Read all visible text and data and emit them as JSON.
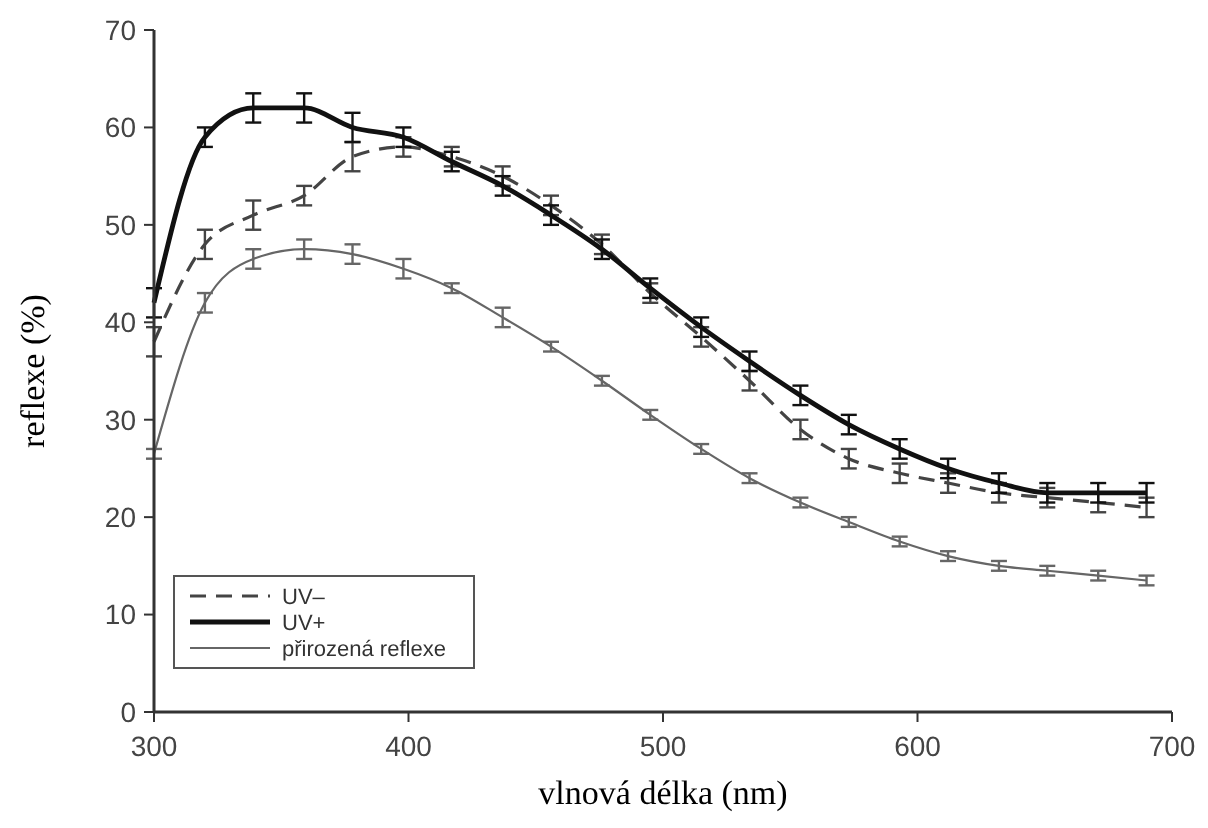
{
  "chart_data": {
    "type": "line",
    "xlabel": "vlnová délka (nm)",
    "ylabel": "reflexe (%)",
    "x": [
      300,
      320,
      339,
      359,
      378,
      398,
      417,
      437,
      456,
      476,
      495,
      515,
      534,
      554,
      573,
      593,
      612,
      632,
      651,
      671,
      690
    ],
    "xlim": [
      300,
      700
    ],
    "xticks": [
      300,
      400,
      500,
      600,
      700
    ],
    "ylim": [
      0,
      70
    ],
    "yticks": [
      0,
      10,
      20,
      30,
      40,
      50,
      60,
      70
    ],
    "grid": false,
    "legend": "bottom left",
    "marker": "none",
    "series": [
      {
        "name": "UV–",
        "color": "#444444",
        "line_style": "dashed",
        "values": [
          38,
          48,
          51,
          53,
          57,
          58,
          57,
          55,
          52,
          48,
          43,
          38.5,
          34,
          29,
          26,
          24.5,
          23.5,
          22.5,
          22,
          21.5,
          21
        ],
        "errors": [
          1.5,
          1.5,
          1.5,
          1,
          1.5,
          1,
          1,
          1,
          1,
          1,
          1,
          1,
          1,
          1,
          1,
          1,
          1,
          1,
          1,
          1,
          1
        ]
      },
      {
        "name": "UV+",
        "color": "#111111",
        "line_style": "solid",
        "values": [
          42,
          59,
          62,
          62,
          60,
          59,
          56.5,
          54,
          51,
          47.5,
          43.5,
          39.5,
          36,
          32.5,
          29.5,
          27,
          25,
          23.5,
          22.5,
          22.5,
          22.5
        ],
        "errors": [
          1.5,
          1,
          1.5,
          1.5,
          1.5,
          1,
          1,
          1,
          1,
          1,
          1,
          1,
          1,
          1,
          1,
          1,
          1,
          1,
          1,
          1,
          1
        ]
      },
      {
        "name": "přirozená reflexe",
        "color": "#666666",
        "line_style": "solid",
        "values": [
          26.5,
          42,
          46.5,
          47.5,
          47,
          45.5,
          43.5,
          40.5,
          37.5,
          34,
          30.5,
          27,
          24,
          21.5,
          19.5,
          17.5,
          16,
          15,
          14.5,
          14,
          13.5
        ],
        "errors": [
          0.5,
          1,
          1,
          1,
          1,
          1,
          0.5,
          1,
          0.5,
          0.5,
          0.5,
          0.5,
          0.5,
          0.5,
          0.5,
          0.5,
          0.5,
          0.5,
          0.5,
          0.5,
          0.5
        ]
      }
    ]
  }
}
